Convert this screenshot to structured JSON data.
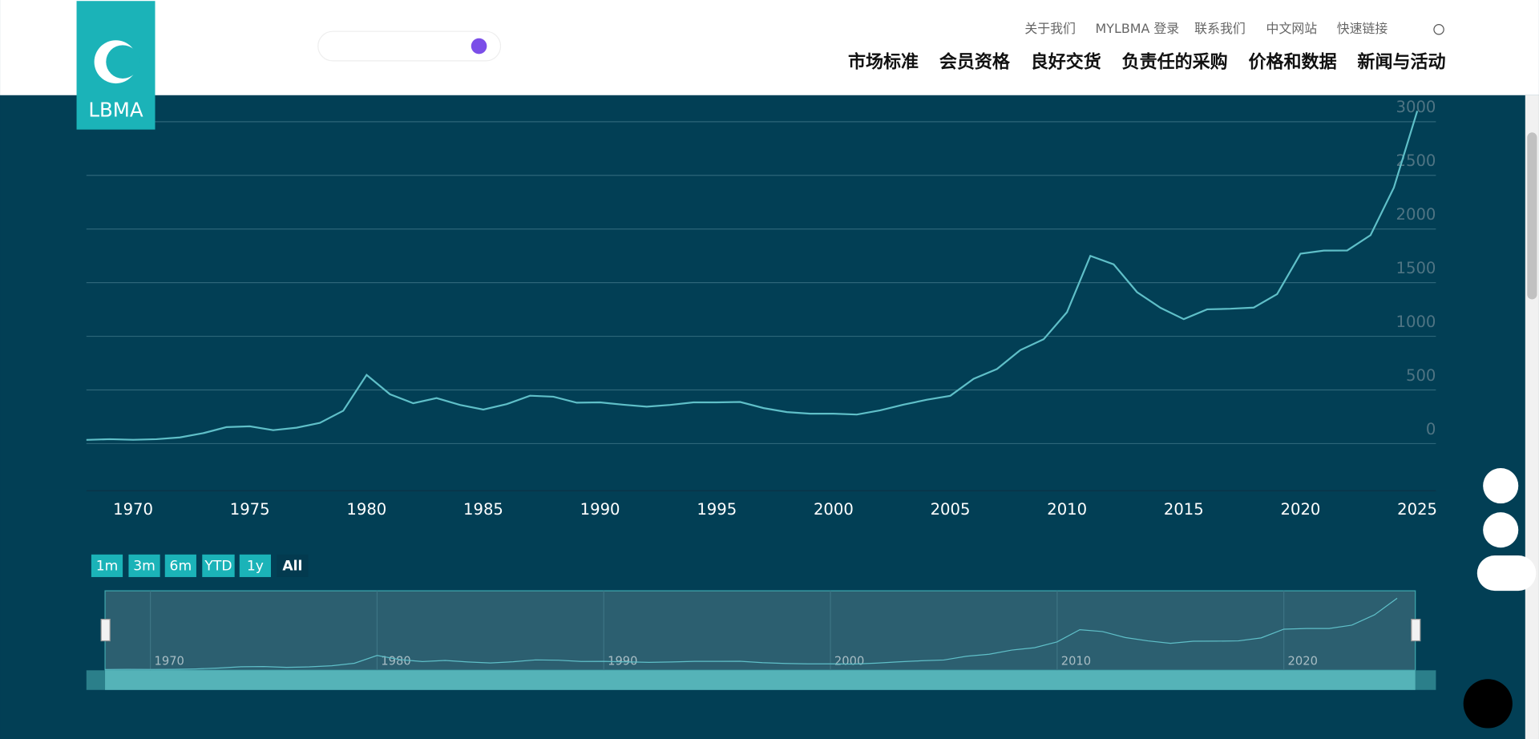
{
  "header": {
    "logo": "LBMA",
    "top_links": [
      "关于我们",
      "MYLBMA 登录",
      "联系我们",
      "中文网站",
      "快速链接"
    ],
    "main_nav": [
      "市场标准",
      "会员资格",
      "良好交货",
      "负责任的采购",
      "价格和数据",
      "新闻与活动"
    ]
  },
  "range_buttons": [
    "1m",
    "3m",
    "6m",
    "YTD",
    "1y",
    "All"
  ],
  "chart_data": {
    "type": "line",
    "color": "#5fbfc8",
    "x": [
      1968,
      1969,
      1970,
      1971,
      1972,
      1973,
      1974,
      1975,
      1976,
      1977,
      1978,
      1979,
      1980,
      1981,
      1982,
      1983,
      1984,
      1985,
      1986,
      1987,
      1988,
      1989,
      1990,
      1991,
      1992,
      1993,
      1994,
      1995,
      1996,
      1997,
      1998,
      1999,
      2000,
      2001,
      2002,
      2003,
      2004,
      2005,
      2006,
      2007,
      2008,
      2009,
      2010,
      2011,
      2012,
      2013,
      2014,
      2015,
      2016,
      2017,
      2018,
      2019,
      2020,
      2021,
      2022,
      2023,
      2024,
      2025
    ],
    "values": [
      35,
      41,
      36,
      41,
      58,
      97,
      154,
      161,
      125,
      148,
      193,
      306,
      640,
      460,
      376,
      424,
      360,
      317,
      368,
      446,
      437,
      381,
      384,
      362,
      344,
      360,
      384,
      384,
      388,
      331,
      294,
      279,
      279,
      271,
      310,
      363,
      409,
      445,
      604,
      695,
      872,
      972,
      1225,
      1750,
      1670,
      1411,
      1266,
      1160,
      1251,
      1257,
      1268,
      1393,
      1770,
      1799,
      1800,
      1943,
      2386,
      3100
    ],
    "xlim": [
      1968,
      2025.8
    ],
    "xticks": [
      1970,
      1975,
      1980,
      1985,
      1990,
      1995,
      2000,
      2005,
      2010,
      2015,
      2020,
      2025
    ],
    "ylim": [
      0,
      3000
    ],
    "yticks": [
      0,
      500,
      1000,
      1500,
      2000,
      2500,
      3000
    ],
    "grid": true,
    "navigator_xticks": [
      1970,
      1980,
      1990,
      2000,
      2010,
      2020
    ]
  }
}
